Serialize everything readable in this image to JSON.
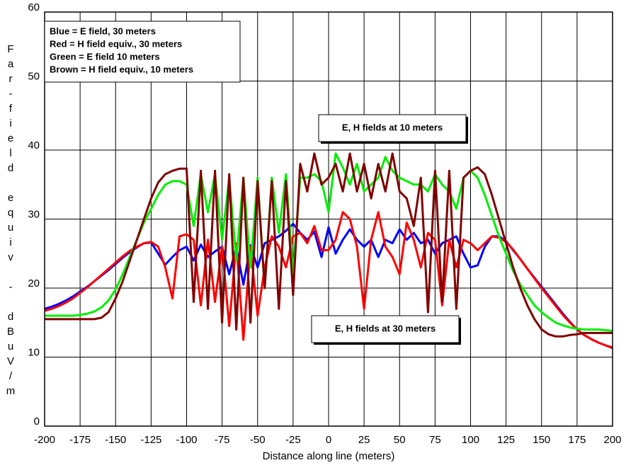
{
  "chart_data": {
    "type": "line",
    "xlabel": "Distance along line (meters)",
    "ylabel": "Far-field equiv - dBuV/m",
    "annotations": [
      "E, H fields at 10 meters",
      "E, H fields at 30 meters"
    ],
    "grid": true,
    "xlim": [
      -200,
      200
    ],
    "ylim": [
      0,
      60
    ],
    "xticks": [
      -200,
      -175,
      -150,
      -125,
      -100,
      -75,
      -50,
      -25,
      0,
      25,
      50,
      75,
      100,
      125,
      150,
      175,
      200
    ],
    "yticks": [
      0,
      10,
      20,
      30,
      40,
      50,
      60
    ],
    "x": [
      -200,
      -195,
      -190,
      -185,
      -180,
      -175,
      -170,
      -165,
      -160,
      -155,
      -150,
      -145,
      -140,
      -135,
      -130,
      -125,
      -120,
      -115,
      -110,
      -105,
      -100,
      -95,
      -90,
      -85,
      -80,
      -75,
      -70,
      -65,
      -60,
      -55,
      -50,
      -45,
      -40,
      -35,
      -30,
      -25,
      -20,
      -15,
      -10,
      -5,
      0,
      5,
      10,
      15,
      20,
      25,
      30,
      35,
      40,
      45,
      50,
      55,
      60,
      65,
      70,
      75,
      80,
      85,
      90,
      95,
      100,
      105,
      110,
      115,
      120,
      125,
      130,
      135,
      140,
      145,
      150,
      155,
      160,
      165,
      170,
      175,
      180,
      185,
      190,
      195,
      200
    ],
    "series": [
      {
        "name": "Blue = E field, 30 meters",
        "color": "#0000ff",
        "values": [
          17,
          17.3,
          17.7,
          18.2,
          18.8,
          19.5,
          20.2,
          21,
          21.8,
          22.6,
          23.5,
          24.4,
          25.2,
          25.9,
          26.5,
          26.6,
          25,
          23.4,
          24.5,
          25.5,
          26,
          24,
          26.3,
          24.5,
          25.3,
          26,
          22,
          26,
          20.5,
          26.2,
          23,
          26.5,
          27,
          27.5,
          28.3,
          29.3,
          28,
          27,
          28.2,
          24.5,
          28.8,
          25,
          27,
          28.5,
          27,
          26,
          27,
          24.5,
          27,
          26.5,
          28.5,
          27,
          28,
          26.5,
          27,
          25,
          26.5,
          27,
          27.5,
          25,
          23,
          23.3,
          26,
          27.5,
          27.5,
          26.8,
          25.5,
          24.2,
          22.8,
          21.5,
          20.2,
          18.9,
          17.6,
          16.3,
          15.1,
          14,
          13.2,
          12.6,
          12.1,
          11.7,
          11.4
        ]
      },
      {
        "name": "Red = H field equiv., 30 meters",
        "color": "#ff0000",
        "values": [
          16.7,
          17,
          17.4,
          17.9,
          18.5,
          19.3,
          20.1,
          21,
          21.9,
          22.8,
          23.7,
          24.6,
          25.4,
          26,
          26.5,
          26.7,
          26,
          23,
          18.5,
          27.5,
          27.8,
          27,
          17.5,
          27,
          18,
          26,
          14.5,
          26.5,
          12.5,
          26,
          16,
          23,
          27.5,
          26,
          23,
          27.5,
          28,
          26.5,
          29,
          25.5,
          25.5,
          27,
          31,
          30,
          26,
          17,
          27,
          31,
          26,
          24.5,
          22,
          29.5,
          27,
          23,
          28,
          27,
          17.5,
          27,
          23,
          27,
          26.5,
          25.5,
          26.5,
          27.5,
          27.3,
          26.7,
          25.6,
          24.2,
          22.8,
          21.4,
          20,
          18.7,
          17.4,
          16.1,
          15,
          14,
          13.2,
          12.6,
          12.1,
          11.7,
          11.3
        ]
      },
      {
        "name": "Green = E field 10 meters",
        "color": "#00ee00",
        "values": [
          16,
          16,
          16,
          16,
          16,
          16.1,
          16.3,
          16.6,
          17.2,
          18.2,
          19.8,
          22,
          24.5,
          27,
          29.5,
          31.5,
          33.5,
          35,
          35.5,
          35.5,
          35,
          29,
          36.5,
          31,
          36.5,
          27,
          36,
          24,
          36,
          23,
          36,
          20,
          36,
          28,
          36.5,
          22,
          36,
          36,
          36.5,
          35.5,
          31,
          39.5,
          37.5,
          35,
          38,
          34,
          35,
          36,
          39,
          37,
          36,
          35.5,
          35,
          35,
          34,
          36.5,
          35,
          34,
          31.5,
          36,
          37,
          36,
          33.5,
          30.5,
          27.5,
          25,
          22.5,
          20.5,
          19,
          17.5,
          16.5,
          15.7,
          15,
          14.6,
          14.3,
          14.1,
          14,
          14,
          14,
          13.9,
          13.8
        ]
      },
      {
        "name": "Brown = H field equiv., 10 meters",
        "color": "#800000",
        "values": [
          15.5,
          15.5,
          15.5,
          15.5,
          15.5,
          15.5,
          15.5,
          15.5,
          15.7,
          16.5,
          18.5,
          21,
          24,
          27,
          30,
          33,
          35.3,
          36.5,
          37,
          37.3,
          37.3,
          18,
          37,
          17,
          37,
          15,
          36.5,
          14,
          36,
          15,
          35.5,
          20,
          35.5,
          17,
          35.5,
          19,
          38,
          34,
          39.5,
          35,
          36,
          38,
          34,
          39.5,
          34,
          38,
          33,
          38,
          34,
          39.5,
          34,
          33,
          29,
          36,
          16.5,
          37,
          18,
          37,
          17,
          36,
          37,
          37.5,
          36.5,
          33.5,
          30,
          26.5,
          23,
          20,
          17.5,
          15.5,
          14,
          13.3,
          13,
          13,
          13.2,
          13.3,
          13.5,
          13.5,
          13.5,
          13.5,
          13.5
        ]
      }
    ]
  }
}
